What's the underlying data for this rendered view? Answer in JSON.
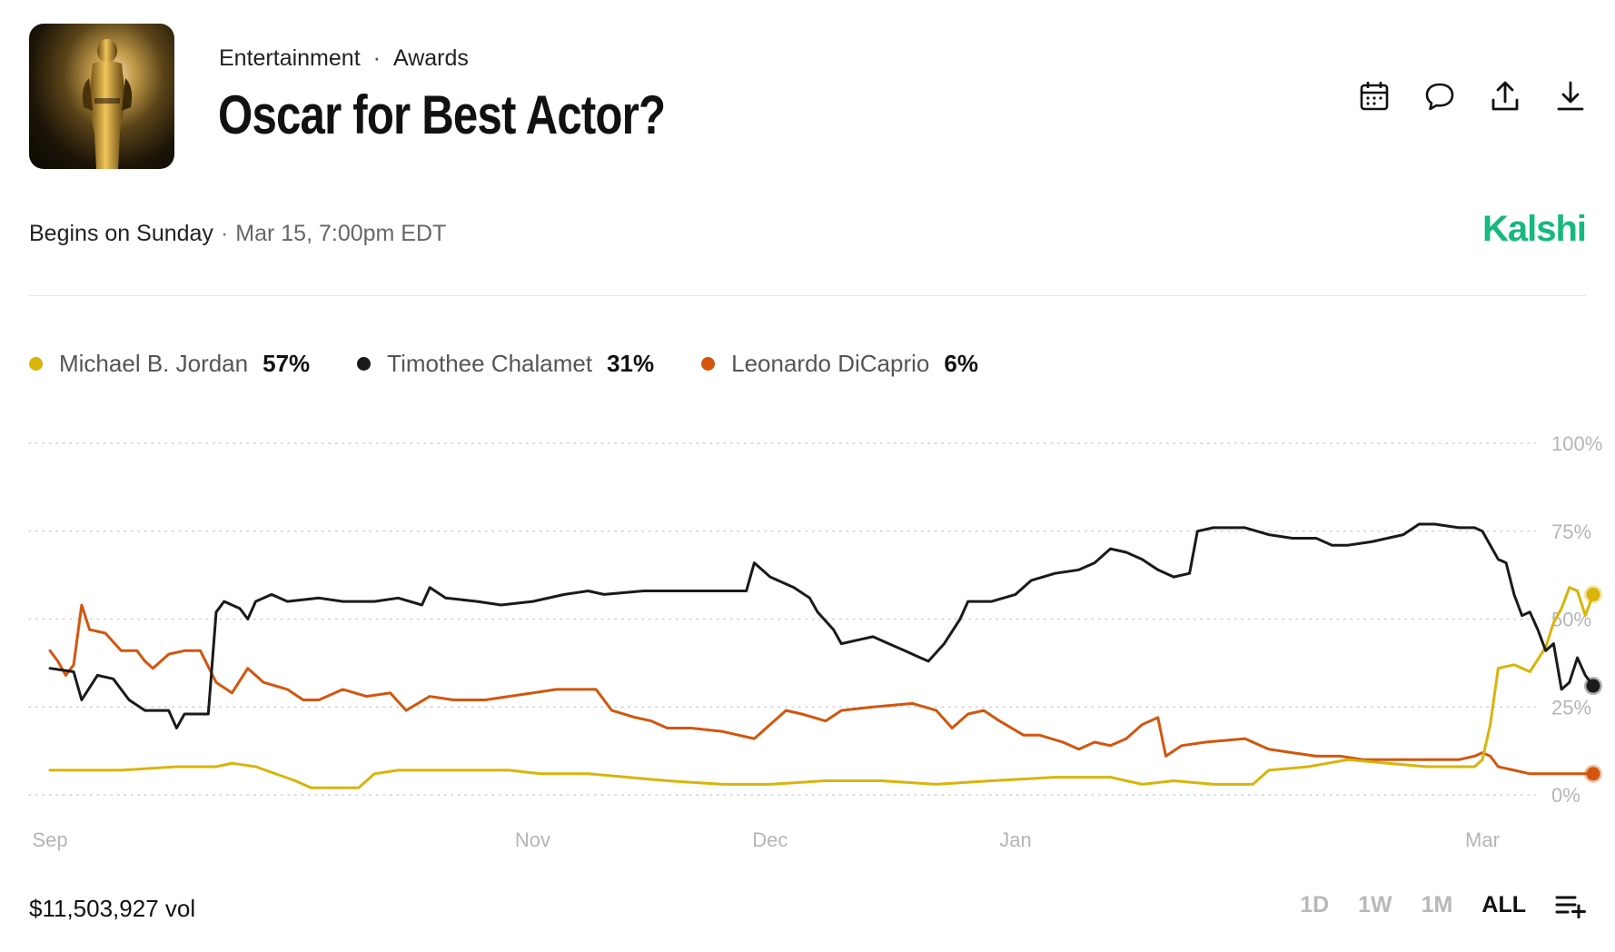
{
  "header": {
    "category": "Entertainment",
    "subcategory": "Awards",
    "title": "Oscar for Best Actor?",
    "begins_label": "Begins on Sunday",
    "begins_time": "Mar 15, 7:00pm EDT",
    "brand": "Kalshi"
  },
  "toolbar": {
    "icons": [
      "calendar-icon",
      "comment-icon",
      "share-icon",
      "download-icon"
    ]
  },
  "legend": [
    {
      "name": "Michael B. Jordan",
      "value": "57%",
      "color": "#d9b40a"
    },
    {
      "name": "Timothee Chalamet",
      "value": "31%",
      "color": "#1a1a1a"
    },
    {
      "name": "Leonardo DiCaprio",
      "value": "6%",
      "color": "#d2560d"
    }
  ],
  "footer": {
    "volume": "$11,503,927 vol",
    "ranges": [
      "1D",
      "1W",
      "1M",
      "ALL"
    ],
    "active_range": "ALL"
  },
  "chart_data": {
    "type": "line",
    "x_type": "date",
    "x_domain": [
      "2025-09-01",
      "2026-03-06"
    ],
    "ylim": [
      0,
      100
    ],
    "y_ticks": [
      0,
      25,
      50,
      75,
      100
    ],
    "y_tick_labels": [
      "0%",
      "25%",
      "50%",
      "75%",
      "100%"
    ],
    "x_ticks": [
      "2025-09-01",
      "2025-11-01",
      "2025-12-01",
      "2026-01-01",
      "2026-03-01"
    ],
    "x_tick_labels": [
      "Sep",
      "Nov",
      "Dec",
      "Jan",
      "Mar"
    ],
    "grid": "horizontal-dotted",
    "series": [
      {
        "name": "Timothee Chalamet",
        "color": "#1a1a1a",
        "points": [
          [
            "2025-09-01",
            36
          ],
          [
            "2025-09-04",
            35
          ],
          [
            "2025-09-05",
            27
          ],
          [
            "2025-09-07",
            34
          ],
          [
            "2025-09-09",
            33
          ],
          [
            "2025-09-11",
            27
          ],
          [
            "2025-09-13",
            24
          ],
          [
            "2025-09-16",
            24
          ],
          [
            "2025-09-17",
            19
          ],
          [
            "2025-09-18",
            23
          ],
          [
            "2025-09-21",
            23
          ],
          [
            "2025-09-22",
            52
          ],
          [
            "2025-09-23",
            55
          ],
          [
            "2025-09-25",
            53
          ],
          [
            "2025-09-26",
            50
          ],
          [
            "2025-09-27",
            55
          ],
          [
            "2025-09-29",
            57
          ],
          [
            "2025-10-01",
            55
          ],
          [
            "2025-10-05",
            56
          ],
          [
            "2025-10-08",
            55
          ],
          [
            "2025-10-12",
            55
          ],
          [
            "2025-10-15",
            56
          ],
          [
            "2025-10-18",
            54
          ],
          [
            "2025-10-19",
            59
          ],
          [
            "2025-10-21",
            56
          ],
          [
            "2025-10-25",
            55
          ],
          [
            "2025-10-28",
            54
          ],
          [
            "2025-11-01",
            55
          ],
          [
            "2025-11-05",
            57
          ],
          [
            "2025-11-08",
            58
          ],
          [
            "2025-11-10",
            57
          ],
          [
            "2025-11-15",
            58
          ],
          [
            "2025-11-22",
            58
          ],
          [
            "2025-11-28",
            58
          ],
          [
            "2025-11-29",
            66
          ],
          [
            "2025-12-01",
            62
          ],
          [
            "2025-12-04",
            59
          ],
          [
            "2025-12-06",
            56
          ],
          [
            "2025-12-07",
            52
          ],
          [
            "2025-12-09",
            47
          ],
          [
            "2025-12-10",
            43
          ],
          [
            "2025-12-12",
            44
          ],
          [
            "2025-12-14",
            45
          ],
          [
            "2025-12-16",
            43
          ],
          [
            "2025-12-18",
            41
          ],
          [
            "2025-12-20",
            39
          ],
          [
            "2025-12-21",
            38
          ],
          [
            "2025-12-23",
            43
          ],
          [
            "2025-12-25",
            50
          ],
          [
            "2025-12-26",
            55
          ],
          [
            "2025-12-29",
            55
          ],
          [
            "2026-01-01",
            57
          ],
          [
            "2026-01-03",
            61
          ],
          [
            "2026-01-06",
            63
          ],
          [
            "2026-01-09",
            64
          ],
          [
            "2026-01-11",
            66
          ],
          [
            "2026-01-13",
            70
          ],
          [
            "2026-01-15",
            69
          ],
          [
            "2026-01-17",
            67
          ],
          [
            "2026-01-19",
            64
          ],
          [
            "2026-01-21",
            62
          ],
          [
            "2026-01-23",
            63
          ],
          [
            "2026-01-24",
            75
          ],
          [
            "2026-01-26",
            76
          ],
          [
            "2026-01-30",
            76
          ],
          [
            "2026-02-02",
            74
          ],
          [
            "2026-02-05",
            73
          ],
          [
            "2026-02-08",
            73
          ],
          [
            "2026-02-10",
            71
          ],
          [
            "2026-02-12",
            71
          ],
          [
            "2026-02-15",
            72
          ],
          [
            "2026-02-17",
            73
          ],
          [
            "2026-02-19",
            74
          ],
          [
            "2026-02-21",
            77
          ],
          [
            "2026-02-23",
            77
          ],
          [
            "2026-02-26",
            76
          ],
          [
            "2026-02-28",
            76
          ],
          [
            "2026-03-01",
            75
          ],
          [
            "2026-03-02",
            71
          ],
          [
            "2026-03-03",
            67
          ],
          [
            "2026-03-04",
            66
          ],
          [
            "2026-03-05",
            57
          ],
          [
            "2026-03-06",
            51
          ],
          [
            "2026-03-07",
            52
          ],
          [
            "2026-03-08",
            47
          ],
          [
            "2026-03-09",
            41
          ],
          [
            "2026-03-10",
            43
          ],
          [
            "2026-03-11",
            30
          ],
          [
            "2026-03-12",
            32
          ],
          [
            "2026-03-13",
            39
          ],
          [
            "2026-03-14",
            34
          ],
          [
            "2026-03-15",
            31
          ]
        ]
      },
      {
        "name": "Leonardo DiCaprio",
        "color": "#d2560d",
        "points": [
          [
            "2025-09-01",
            41
          ],
          [
            "2025-09-02",
            38
          ],
          [
            "2025-09-03",
            34
          ],
          [
            "2025-09-04",
            37
          ],
          [
            "2025-09-05",
            54
          ],
          [
            "2025-09-06",
            47
          ],
          [
            "2025-09-08",
            46
          ],
          [
            "2025-09-10",
            41
          ],
          [
            "2025-09-12",
            41
          ],
          [
            "2025-09-13",
            38
          ],
          [
            "2025-09-14",
            36
          ],
          [
            "2025-09-16",
            40
          ],
          [
            "2025-09-18",
            41
          ],
          [
            "2025-09-20",
            41
          ],
          [
            "2025-09-22",
            32
          ],
          [
            "2025-09-24",
            29
          ],
          [
            "2025-09-26",
            36
          ],
          [
            "2025-09-28",
            32
          ],
          [
            "2025-10-01",
            30
          ],
          [
            "2025-10-03",
            27
          ],
          [
            "2025-10-05",
            27
          ],
          [
            "2025-10-08",
            30
          ],
          [
            "2025-10-11",
            28
          ],
          [
            "2025-10-14",
            29
          ],
          [
            "2025-10-16",
            24
          ],
          [
            "2025-10-19",
            28
          ],
          [
            "2025-10-22",
            27
          ],
          [
            "2025-10-26",
            27
          ],
          [
            "2025-10-29",
            28
          ],
          [
            "2025-11-01",
            29
          ],
          [
            "2025-11-04",
            30
          ],
          [
            "2025-11-09",
            30
          ],
          [
            "2025-11-11",
            24
          ],
          [
            "2025-11-14",
            22
          ],
          [
            "2025-11-16",
            21
          ],
          [
            "2025-11-18",
            19
          ],
          [
            "2025-11-21",
            19
          ],
          [
            "2025-11-25",
            18
          ],
          [
            "2025-11-29",
            16
          ],
          [
            "2025-12-01",
            20
          ],
          [
            "2025-12-03",
            24
          ],
          [
            "2025-12-05",
            23
          ],
          [
            "2025-12-08",
            21
          ],
          [
            "2025-12-10",
            24
          ],
          [
            "2025-12-14",
            25
          ],
          [
            "2025-12-19",
            26
          ],
          [
            "2025-12-22",
            24
          ],
          [
            "2025-12-24",
            19
          ],
          [
            "2025-12-26",
            23
          ],
          [
            "2025-12-28",
            24
          ],
          [
            "2025-12-30",
            21
          ],
          [
            "2026-01-02",
            17
          ],
          [
            "2026-01-04",
            17
          ],
          [
            "2026-01-07",
            15
          ],
          [
            "2026-01-09",
            13
          ],
          [
            "2026-01-11",
            15
          ],
          [
            "2026-01-13",
            14
          ],
          [
            "2026-01-15",
            16
          ],
          [
            "2026-01-17",
            20
          ],
          [
            "2026-01-19",
            22
          ],
          [
            "2026-01-20",
            11
          ],
          [
            "2026-01-22",
            14
          ],
          [
            "2026-01-25",
            15
          ],
          [
            "2026-01-30",
            16
          ],
          [
            "2026-02-02",
            13
          ],
          [
            "2026-02-05",
            12
          ],
          [
            "2026-02-08",
            11
          ],
          [
            "2026-02-11",
            11
          ],
          [
            "2026-02-14",
            10
          ],
          [
            "2026-02-17",
            10
          ],
          [
            "2026-02-20",
            10
          ],
          [
            "2026-02-23",
            10
          ],
          [
            "2026-02-26",
            10
          ],
          [
            "2026-02-28",
            11
          ],
          [
            "2026-03-01",
            12
          ],
          [
            "2026-03-02",
            11
          ],
          [
            "2026-03-03",
            8
          ],
          [
            "2026-03-05",
            7
          ],
          [
            "2026-03-07",
            6
          ],
          [
            "2026-03-10",
            6
          ],
          [
            "2026-03-13",
            6
          ],
          [
            "2026-03-15",
            6
          ]
        ]
      },
      {
        "name": "Michael B. Jordan",
        "color": "#d9b40a",
        "points": [
          [
            "2025-09-01",
            7
          ],
          [
            "2025-09-10",
            7
          ],
          [
            "2025-09-17",
            8
          ],
          [
            "2025-09-22",
            8
          ],
          [
            "2025-09-24",
            9
          ],
          [
            "2025-09-27",
            8
          ],
          [
            "2025-10-02",
            4
          ],
          [
            "2025-10-04",
            2
          ],
          [
            "2025-10-07",
            2
          ],
          [
            "2025-10-10",
            2
          ],
          [
            "2025-10-12",
            6
          ],
          [
            "2025-10-15",
            7
          ],
          [
            "2025-10-22",
            7
          ],
          [
            "2025-10-29",
            7
          ],
          [
            "2025-11-02",
            6
          ],
          [
            "2025-11-08",
            6
          ],
          [
            "2025-11-13",
            5
          ],
          [
            "2025-11-18",
            4
          ],
          [
            "2025-11-25",
            3
          ],
          [
            "2025-12-01",
            3
          ],
          [
            "2025-12-08",
            4
          ],
          [
            "2025-12-15",
            4
          ],
          [
            "2025-12-22",
            3
          ],
          [
            "2025-12-29",
            4
          ],
          [
            "2026-01-06",
            5
          ],
          [
            "2026-01-13",
            5
          ],
          [
            "2026-01-17",
            3
          ],
          [
            "2026-01-21",
            4
          ],
          [
            "2026-01-26",
            3
          ],
          [
            "2026-01-31",
            3
          ],
          [
            "2026-02-02",
            7
          ],
          [
            "2026-02-07",
            8
          ],
          [
            "2026-02-12",
            10
          ],
          [
            "2026-02-17",
            9
          ],
          [
            "2026-02-22",
            8
          ],
          [
            "2026-02-28",
            8
          ],
          [
            "2026-03-01",
            10
          ],
          [
            "2026-03-02",
            20
          ],
          [
            "2026-03-03",
            36
          ],
          [
            "2026-03-05",
            37
          ],
          [
            "2026-03-07",
            35
          ],
          [
            "2026-03-09",
            42
          ],
          [
            "2026-03-10",
            49
          ],
          [
            "2026-03-11",
            53
          ],
          [
            "2026-03-12",
            59
          ],
          [
            "2026-03-13",
            58
          ],
          [
            "2026-03-14",
            51
          ],
          [
            "2026-03-15",
            57
          ]
        ]
      }
    ]
  }
}
